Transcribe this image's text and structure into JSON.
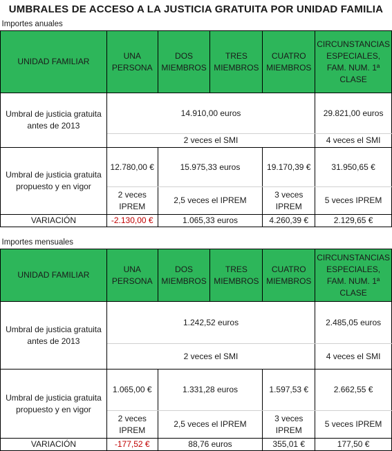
{
  "title": "UMBRALES DE ACCESO A LA JUSTICIA GRATUITA POR UNIDAD FAMILIA",
  "columns": {
    "unidad": "UNIDAD FAMILIAR",
    "una": "UNA PERSONA",
    "dos": "DOS MIEMBROS",
    "tres": "TRES MIEMBROS",
    "cuatro": "CUATRO MIEMBROS",
    "especiales": "CIRCUNSTANCIAS ESPECIALES, FAM. NUM. 1ª CLASE"
  },
  "anual": {
    "section": "Importes anuales",
    "antes_label": "Umbral de justicia gratuita antes de 2013",
    "antes_general": "14.910,00 euros",
    "antes_general_note": "2 veces el SMI",
    "antes_especial": "29.821,00 euros",
    "antes_especial_note": "4 veces el SMI",
    "prop_label": "Umbral de justicia gratuita propuesto y en vigor",
    "prop_una": "12.780,00 €",
    "prop_dos_tres": "15.975,33 euros",
    "prop_cuatro": "19.170,39 €",
    "prop_especial": "31.950,65 €",
    "note_una": "2 veces IPREM",
    "note_dos_tres": "2,5 veces el IPREM",
    "note_cuatro": "3 veces IPREM",
    "note_especial": "5 veces IPREM",
    "var_label": "VARIACIÓN",
    "var_una": "-2.130,00 €",
    "var_dos_tres": "1.065,33 euros",
    "var_cuatro": "4.260,39 €",
    "var_especial": "2.129,65 €"
  },
  "mensual": {
    "section": "Importes mensuales",
    "antes_label": "Umbral de justicia gratuita antes de 2013",
    "antes_general": "1.242,52 euros",
    "antes_general_note": "2 veces el SMI",
    "antes_especial": "2.485,05 euros",
    "antes_especial_note": "4 veces el SMI",
    "prop_label": "Umbral de justicia gratuita propuesto y en vigor",
    "prop_una": "1.065,00 €",
    "prop_dos_tres": "1.331,28 euros",
    "prop_cuatro": "1.597,53 €",
    "prop_especial": "2.662,55 €",
    "note_una": "2 veces IPREM",
    "note_dos_tres": "2,5 veces el IPREM",
    "note_cuatro": "3 veces IPREM",
    "note_especial": "5 veces IPREM",
    "var_label": "VARIACIÓN",
    "var_una": "-177,52 €",
    "var_dos_tres": "88,76 euros",
    "var_cuatro": "355,01 €",
    "var_especial": "177,50 €"
  }
}
